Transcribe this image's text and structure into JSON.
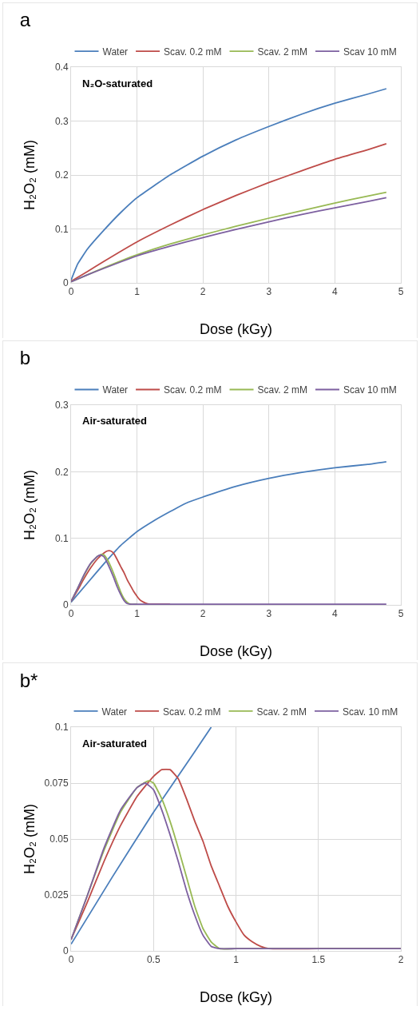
{
  "chart_data": [
    {
      "type": "line",
      "title": "a",
      "xlabel": "Dose (kGy)",
      "ylabel": "H₂O₂ (mM)",
      "annotations": [
        "N₂O-saturated"
      ],
      "xlim": [
        0,
        5
      ],
      "xticks": [
        0,
        1,
        2,
        3,
        4,
        5
      ],
      "ylim": [
        0,
        0.4
      ],
      "yticks": [
        0,
        0.1,
        0.2,
        0.3,
        0.4
      ],
      "grid": true,
      "legend": "top",
      "marker": "none",
      "line_style": "solid",
      "x": [
        0,
        0.25,
        0.5,
        1,
        1.5,
        2,
        2.5,
        3,
        3.5,
        4,
        4.5,
        4.78
      ],
      "series": [
        {
          "name": "Water",
          "color": "#4a7ebb",
          "x": [
            0,
            0.1,
            0.25,
            0.5,
            0.75,
            1,
            1.5,
            2,
            2.5,
            3,
            3.5,
            4,
            4.5,
            4.78
          ],
          "values": [
            0.005,
            0.035,
            0.063,
            0.098,
            0.13,
            0.158,
            0.2,
            0.235,
            0.265,
            0.29,
            0.313,
            0.333,
            0.35,
            0.36
          ]
        },
        {
          "name": "Scav. 0.2 mM",
          "color": "#be4b48",
          "values": [
            0.003,
            0.021,
            0.04,
            0.076,
            0.107,
            0.136,
            0.162,
            0.186,
            0.208,
            0.229,
            0.247,
            0.258
          ]
        },
        {
          "name": "Scav. 2 mM",
          "color": "#98b954",
          "values": [
            0.002,
            0.015,
            0.028,
            0.052,
            0.072,
            0.089,
            0.105,
            0.12,
            0.134,
            0.148,
            0.161,
            0.168
          ]
        },
        {
          "name": "Scav 10 mM",
          "color": "#7d60a0",
          "values": [
            0.002,
            0.015,
            0.027,
            0.05,
            0.068,
            0.084,
            0.099,
            0.113,
            0.127,
            0.139,
            0.151,
            0.158
          ]
        }
      ]
    },
    {
      "type": "line",
      "title": "b",
      "xlabel": "Dose (kGy)",
      "ylabel": "H₂O₂ (mM)",
      "annotations": [
        "Air-saturated"
      ],
      "xlim": [
        0,
        5
      ],
      "xticks": [
        0,
        1,
        2,
        3,
        4,
        5
      ],
      "ylim": [
        0,
        0.3
      ],
      "yticks": [
        0,
        0.1,
        0.2,
        0.3
      ],
      "grid": true,
      "legend": "top",
      "marker": "none",
      "line_style": "solid",
      "series": [
        {
          "name": "Water",
          "color": "#4a7ebb",
          "x": [
            0,
            0.25,
            0.5,
            0.75,
            1,
            1.25,
            1.5,
            1.75,
            2,
            2.5,
            3,
            3.5,
            4,
            4.5,
            4.78
          ],
          "values": [
            0.004,
            0.033,
            0.062,
            0.089,
            0.11,
            0.126,
            0.14,
            0.153,
            0.162,
            0.178,
            0.19,
            0.199,
            0.206,
            0.211,
            0.215
          ]
        },
        {
          "name": "Scav. 0.2 mM",
          "color": "#be4b48",
          "x": [
            0,
            0.1,
            0.2,
            0.3,
            0.4,
            0.5,
            0.55,
            0.6,
            0.65,
            0.7,
            0.75,
            0.8,
            0.85,
            0.9,
            0.95,
            1,
            1.05,
            1.1,
            1.15,
            1.2,
            1.5
          ],
          "values": [
            0.005,
            0.022,
            0.04,
            0.056,
            0.069,
            0.078,
            0.081,
            0.081,
            0.077,
            0.068,
            0.058,
            0.049,
            0.038,
            0.029,
            0.02,
            0.013,
            0.007,
            0.004,
            0.002,
            0.001,
            0.001
          ]
        },
        {
          "name": "Scav. 2 mM",
          "color": "#98b954",
          "x": [
            0,
            0.1,
            0.2,
            0.3,
            0.4,
            0.47,
            0.5,
            0.55,
            0.6,
            0.65,
            0.7,
            0.75,
            0.8,
            0.85,
            0.9,
            1
          ],
          "values": [
            0.005,
            0.025,
            0.045,
            0.062,
            0.073,
            0.076,
            0.075,
            0.068,
            0.058,
            0.046,
            0.033,
            0.02,
            0.01,
            0.004,
            0.001,
            0.001
          ]
        },
        {
          "name": "Scav 10 mM",
          "color": "#7d60a0",
          "x": [
            0,
            0.1,
            0.2,
            0.3,
            0.4,
            0.45,
            0.5,
            0.55,
            0.6,
            0.65,
            0.7,
            0.75,
            0.8,
            0.85,
            0.9,
            1,
            2,
            3,
            4,
            4.78
          ],
          "values": [
            0.005,
            0.025,
            0.046,
            0.063,
            0.073,
            0.075,
            0.072,
            0.063,
            0.052,
            0.04,
            0.027,
            0.016,
            0.007,
            0.002,
            0.001,
            0.001,
            0.001,
            0.001,
            0.001,
            0.001
          ]
        }
      ]
    },
    {
      "type": "line",
      "title": "b*",
      "xlabel": "Dose (kGy)",
      "ylabel": "H₂O₂ (mM)",
      "annotations": [
        "Air-saturated"
      ],
      "xlim": [
        0,
        2
      ],
      "xticks": [
        0,
        0.5,
        1,
        1.5,
        2
      ],
      "ylim": [
        0,
        0.1
      ],
      "yticks": [
        0,
        0.025,
        0.05,
        0.075,
        0.1
      ],
      "grid": true,
      "legend": "top",
      "marker": "none",
      "line_style": "solid",
      "series": [
        {
          "name": "Water",
          "color": "#4a7ebb",
          "x": [
            0,
            0.25,
            0.5,
            0.75,
            0.85
          ],
          "values": [
            0.003,
            0.033,
            0.062,
            0.089,
            0.1
          ]
        },
        {
          "name": "Scav. 0.2 mM",
          "color": "#be4b48",
          "x": [
            0,
            0.1,
            0.2,
            0.3,
            0.4,
            0.5,
            0.55,
            0.6,
            0.65,
            0.7,
            0.75,
            0.8,
            0.85,
            0.9,
            0.95,
            1,
            1.05,
            1.1,
            1.15,
            1.2,
            1.5,
            2
          ],
          "values": [
            0.005,
            0.022,
            0.04,
            0.056,
            0.069,
            0.078,
            0.081,
            0.081,
            0.077,
            0.068,
            0.058,
            0.049,
            0.038,
            0.029,
            0.02,
            0.013,
            0.007,
            0.004,
            0.002,
            0.001,
            0.001,
            0.001
          ]
        },
        {
          "name": "Scav. 2 mM",
          "color": "#98b954",
          "x": [
            0,
            0.1,
            0.2,
            0.3,
            0.4,
            0.47,
            0.5,
            0.55,
            0.6,
            0.65,
            0.7,
            0.75,
            0.8,
            0.85,
            0.9,
            1,
            2
          ],
          "values": [
            0.005,
            0.025,
            0.045,
            0.062,
            0.073,
            0.076,
            0.075,
            0.068,
            0.058,
            0.046,
            0.033,
            0.02,
            0.01,
            0.004,
            0.001,
            0.001,
            0.001
          ]
        },
        {
          "name": "Scav. 10 mM",
          "color": "#7d60a0",
          "x": [
            0,
            0.1,
            0.2,
            0.3,
            0.4,
            0.45,
            0.5,
            0.55,
            0.6,
            0.65,
            0.7,
            0.75,
            0.8,
            0.85,
            0.9,
            1,
            2
          ],
          "values": [
            0.005,
            0.025,
            0.046,
            0.063,
            0.073,
            0.075,
            0.072,
            0.063,
            0.052,
            0.04,
            0.027,
            0.016,
            0.007,
            0.002,
            0.001,
            0.001,
            0.001
          ]
        }
      ]
    }
  ]
}
